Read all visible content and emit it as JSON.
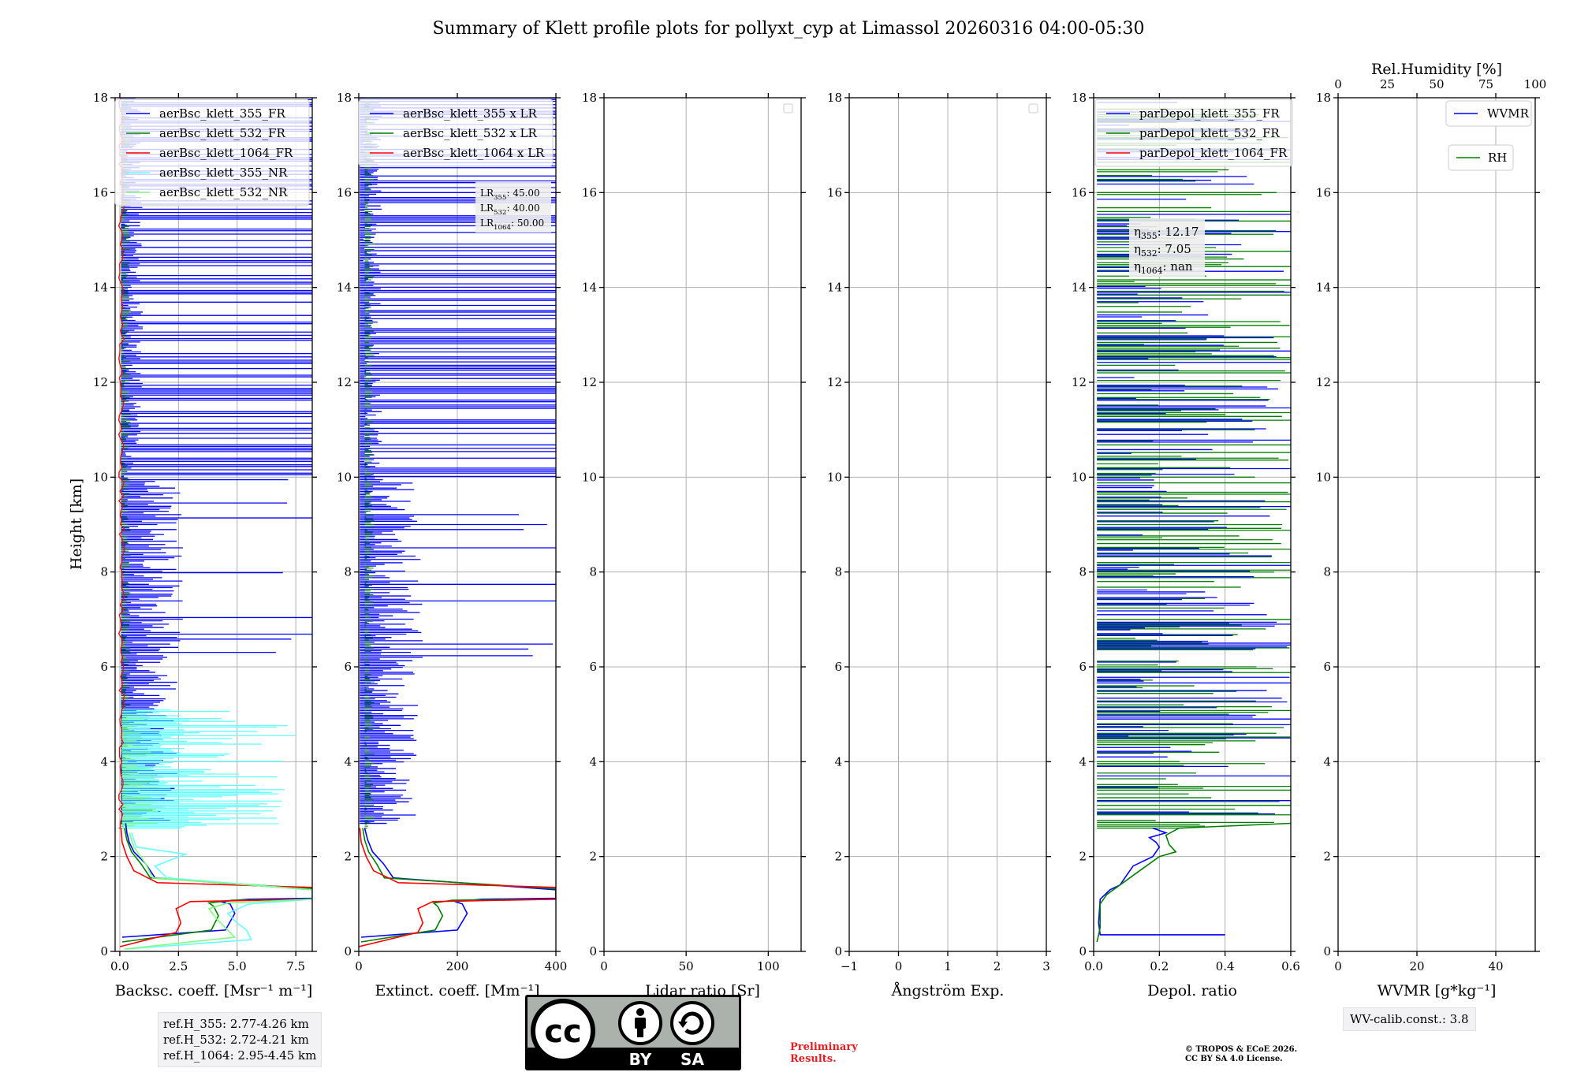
{
  "figure": {
    "title": "Summary of Klett profile plots for pollyxt_cyp at Limassol 20260316 04:00-05:30",
    "ylabel": "Height [km]",
    "reference_heights": [
      "ref.H_355: 2.77-4.26 km",
      "ref.H_532: 2.72-4.21 km",
      "ref.H_1064: 2.95-4.45 km"
    ],
    "wv_calib": "WV-calib.const.: 3.8",
    "license_badge": {
      "by": "BY",
      "sa": "SA",
      "cc": "cc"
    },
    "preliminary": [
      "Preliminary",
      "Results."
    ],
    "copyright": [
      "© TROPOS & ECoE 2026.",
      "CC BY SA 4.0 License."
    ]
  },
  "colors": {
    "blue": "#0000ff",
    "green": "#007f00",
    "red": "#ff0000",
    "cyan": "#66ffff",
    "lightgreen": "#7fff7f"
  },
  "chart_data": [
    {
      "type": "line",
      "xlabel": "Backsc. coeff. [Msr⁻¹ m⁻¹]",
      "xlim": [
        -0.2,
        8.2
      ],
      "ylim": [
        0,
        18
      ],
      "xticks": [
        "0.0",
        "2.5",
        "5.0",
        "7.5"
      ],
      "xtick_values": [
        0,
        2.5,
        5,
        7.5
      ],
      "yticks": [
        "0",
        "2",
        "4",
        "6",
        "8",
        "10",
        "12",
        "14",
        "16",
        "18"
      ],
      "grid": true,
      "legend": {
        "placement": "top-right",
        "entries": [
          {
            "label": "aerBsc_klett_355_FR",
            "color": "#0000ff"
          },
          {
            "label": "aerBsc_klett_532_FR",
            "color": "#007f00"
          },
          {
            "label": "aerBsc_klett_1064_FR",
            "color": "#ff0000"
          },
          {
            "label": "aerBsc_klett_355_NR",
            "color": "#66ffff"
          },
          {
            "label": "aerBsc_klett_532_NR",
            "color": "#7fff7f"
          }
        ]
      },
      "series": [
        {
          "name": "aerBsc_klett_355_FR",
          "color": "#0000ff",
          "x": [
            0.1,
            4.5,
            4.9,
            4.7,
            4.3,
            5.5,
            8.2,
            8.2,
            1.5,
            1.1,
            0.6,
            0.4,
            0.3,
            0.25
          ],
          "y": [
            0.3,
            0.45,
            0.8,
            1.0,
            1.05,
            1.1,
            1.12,
            1.3,
            1.55,
            1.85,
            2.1,
            2.3,
            2.5,
            2.7
          ]
        },
        {
          "name": "aerBsc_klett_532_FR",
          "color": "#007f00",
          "x": [
            0.1,
            3.9,
            4.2,
            4.0,
            3.8,
            4.8,
            8.2,
            8.2,
            1.3,
            0.9,
            0.5,
            0.3,
            0.2
          ],
          "y": [
            0.2,
            0.45,
            0.75,
            0.95,
            1.02,
            1.08,
            1.1,
            1.32,
            1.55,
            1.85,
            2.1,
            2.35,
            2.6
          ]
        },
        {
          "name": "aerBsc_klett_1064_FR",
          "color": "#ff0000",
          "x": [
            0.0,
            2.4,
            2.6,
            2.4,
            3.0,
            8.2,
            8.2,
            1.6,
            0.6,
            0.3,
            0.1,
            0.05
          ],
          "y": [
            0.1,
            0.4,
            0.6,
            0.9,
            1.05,
            1.1,
            1.35,
            1.45,
            1.7,
            2.0,
            2.3,
            2.6
          ]
        },
        {
          "name": "aerBsc_klett_355_NR",
          "color": "#66ffff",
          "x": [
            0.3,
            5.6,
            5.4,
            5.0,
            4.6,
            5.5,
            8.2,
            8.2,
            2.0,
            1.5,
            2.8,
            0.7,
            0.5
          ],
          "y": [
            0.05,
            0.25,
            0.45,
            0.6,
            0.8,
            1.0,
            1.1,
            1.3,
            1.55,
            1.8,
            2.05,
            2.2,
            2.5
          ]
        },
        {
          "name": "aerBsc_klett_532_NR",
          "color": "#7fff7f",
          "x": [
            0.2,
            4.9,
            4.5,
            4.1,
            3.8,
            4.6,
            8.2,
            8.2,
            1.4,
            1.1,
            0.6,
            0.4
          ],
          "y": [
            0.05,
            0.3,
            0.5,
            0.7,
            0.9,
            1.02,
            1.1,
            1.3,
            1.55,
            1.85,
            2.2,
            2.5
          ]
        }
      ]
    },
    {
      "type": "line",
      "xlabel": "Extinct. coeff. [Mm⁻¹]",
      "xlim": [
        0,
        400
      ],
      "ylim": [
        0,
        18
      ],
      "xticks": [
        "0",
        "200",
        "400"
      ],
      "xtick_values": [
        0,
        200,
        400
      ],
      "yticks": [
        "0",
        "2",
        "4",
        "6",
        "8",
        "10",
        "12",
        "14",
        "16",
        "18"
      ],
      "grid": true,
      "legend": {
        "placement": "top-right",
        "entries": [
          {
            "label": "aerBsc_klett_355 x LR",
            "color": "#0000ff"
          },
          {
            "label": "aerBsc_klett_532 x LR",
            "color": "#007f00"
          },
          {
            "label": "aerBsc_klett_1064 x LR",
            "color": "#ff0000"
          }
        ]
      },
      "annotation": {
        "lines": [
          {
            "pre": "LR",
            "sub": "355",
            "post": ": 45.00"
          },
          {
            "pre": "LR",
            "sub": "532",
            "post": ": 40.00"
          },
          {
            "pre": "LR",
            "sub": "1064",
            "post": ": 50.00"
          }
        ]
      },
      "series": [
        {
          "name": "aerBsc_klett_355 x LR",
          "color": "#0000ff",
          "x": [
            5,
            200,
            220,
            210,
            195,
            250,
            400,
            400,
            70,
            50,
            28,
            18,
            12
          ],
          "y": [
            0.3,
            0.45,
            0.8,
            1.0,
            1.05,
            1.1,
            1.12,
            1.3,
            1.55,
            1.85,
            2.1,
            2.35,
            2.6
          ]
        },
        {
          "name": "aerBsc_klett_532 x LR",
          "color": "#007f00",
          "x": [
            5,
            155,
            170,
            160,
            152,
            190,
            400,
            400,
            52,
            36,
            20,
            12,
            8
          ],
          "y": [
            0.2,
            0.45,
            0.75,
            0.95,
            1.02,
            1.08,
            1.1,
            1.32,
            1.55,
            1.85,
            2.1,
            2.35,
            2.6
          ]
        },
        {
          "name": "aerBsc_klett_1064 x LR",
          "color": "#ff0000",
          "x": [
            0,
            120,
            130,
            120,
            150,
            400,
            400,
            80,
            30,
            15,
            5,
            2
          ],
          "y": [
            0.1,
            0.4,
            0.6,
            0.9,
            1.05,
            1.1,
            1.35,
            1.45,
            1.7,
            2.0,
            2.3,
            2.6
          ]
        }
      ]
    },
    {
      "type": "line",
      "xlabel": "Lidar ratio [Sr]",
      "xlim": [
        0,
        120
      ],
      "ylim": [
        0,
        18
      ],
      "xticks": [
        "0",
        "50",
        "100"
      ],
      "xtick_values": [
        0,
        50,
        100
      ],
      "yticks": [
        "0",
        "2",
        "4",
        "6",
        "8",
        "10",
        "12",
        "14",
        "16",
        "18"
      ],
      "grid": true,
      "legend": {
        "placement": "top-right",
        "entries": []
      },
      "series": []
    },
    {
      "type": "line",
      "xlabel": "Ångström Exp.",
      "xlim": [
        -1,
        3
      ],
      "ylim": [
        0,
        18
      ],
      "xticks": [
        "−1",
        "0",
        "1",
        "2",
        "3"
      ],
      "xtick_values": [
        -1,
        0,
        1,
        2,
        3
      ],
      "yticks": [
        "0",
        "2",
        "4",
        "6",
        "8",
        "10",
        "12",
        "14",
        "16",
        "18"
      ],
      "grid": true,
      "legend": {
        "placement": "top-right",
        "entries": []
      },
      "series": []
    },
    {
      "type": "line",
      "xlabel": "Depol. ratio",
      "xlim": [
        0,
        0.6
      ],
      "ylim": [
        0,
        18
      ],
      "xticks": [
        "0.0",
        "0.2",
        "0.4",
        "0.6"
      ],
      "xtick_values": [
        0,
        0.2,
        0.4,
        0.6
      ],
      "yticks": [
        "0",
        "2",
        "4",
        "6",
        "8",
        "10",
        "12",
        "14",
        "16",
        "18"
      ],
      "grid": true,
      "legend": {
        "placement": "top-left",
        "entries": [
          {
            "label": "parDepol_klett_355_FR",
            "color": "#0000ff"
          },
          {
            "label": "parDepol_klett_532_FR",
            "color": "#007f00"
          },
          {
            "label": "parDepol_klett_1064_FR",
            "color": "#ff0000"
          }
        ]
      },
      "annotation": {
        "lines": [
          {
            "pre": "η",
            "sub": "355",
            "post": ": 12.17"
          },
          {
            "pre": "η",
            "sub": "532",
            "post": ": 7.05"
          },
          {
            "pre": "η",
            "sub": "1064",
            "post": ": nan"
          }
        ]
      },
      "series": [
        {
          "name": "parDepol_klett_355_FR",
          "color": "#0000ff",
          "x": [
            0.4,
            0.02,
            0.015,
            0.02,
            0.05,
            0.08,
            0.1,
            0.12,
            0.15,
            0.18,
            0.2,
            0.19,
            0.17,
            0.22,
            0.18
          ],
          "y": [
            0.35,
            0.35,
            0.6,
            1.1,
            1.3,
            1.4,
            1.6,
            1.8,
            1.9,
            2.0,
            2.2,
            2.3,
            2.4,
            2.5,
            2.6
          ]
        },
        {
          "name": "parDepol_klett_532_FR",
          "color": "#007f00",
          "x": [
            0.01,
            0.02,
            0.02,
            0.04,
            0.08,
            0.12,
            0.16,
            0.2,
            0.25,
            0.23,
            0.22,
            0.26,
            0.6
          ],
          "y": [
            0.2,
            0.5,
            1.0,
            1.2,
            1.4,
            1.6,
            1.8,
            2.0,
            2.1,
            2.25,
            2.45,
            2.6,
            2.7
          ]
        }
      ]
    },
    {
      "type": "line",
      "xlabel": "WVMR [g*kg⁻¹]",
      "xlim": [
        0,
        50
      ],
      "ylim": [
        0,
        18
      ],
      "xticks": [
        "0",
        "20",
        "40"
      ],
      "xtick_values": [
        0,
        20,
        40
      ],
      "yticks": [
        "0",
        "2",
        "4",
        "6",
        "8",
        "10",
        "12",
        "14",
        "16",
        "18"
      ],
      "top_xlabel": "Rel.Humidity [%]",
      "top_xticks": [
        "0",
        "25",
        "50",
        "75",
        "100"
      ],
      "top_xtick_values": [
        0,
        25,
        50,
        75,
        100
      ],
      "grid": true,
      "legend_wvmr": {
        "label": "WVMR",
        "color": "#0000ff"
      },
      "legend_rh": {
        "label": "RH",
        "color": "#007f00"
      },
      "series": []
    }
  ]
}
